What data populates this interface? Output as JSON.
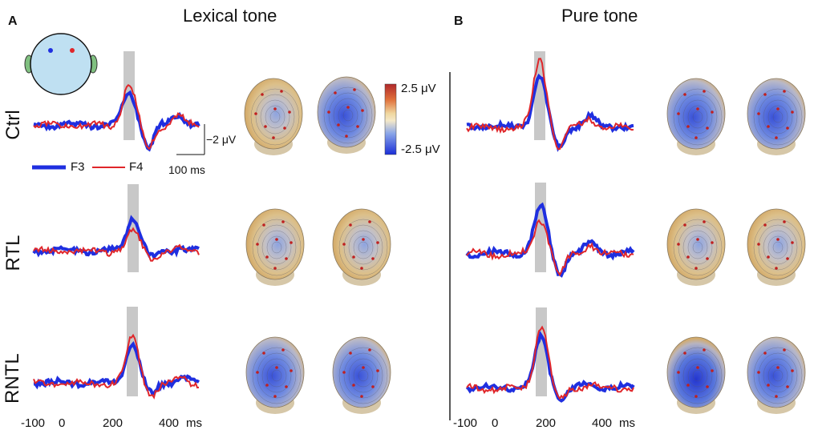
{
  "panels": {
    "a": {
      "label": "A",
      "title": "Lexical tone"
    },
    "b": {
      "label": "B",
      "title": "Pure tone"
    }
  },
  "rows": [
    "Ctrl",
    "RTL",
    "RNTL"
  ],
  "electrodes": {
    "left": "F3",
    "right": "F4"
  },
  "legend": {
    "f3": "F3",
    "f4": "F4"
  },
  "scale_bar": {
    "amplitude": "−2 μV",
    "time": "100 ms"
  },
  "colorbar": {
    "max": "2.5 μV",
    "min": "-2.5 μV",
    "colors": [
      "#c0282a",
      "#e8a040",
      "#f4e4b0",
      "#7a96e0",
      "#1a2ee0"
    ]
  },
  "x_axis": {
    "ticks": [
      "-100",
      "0",
      "200",
      "400"
    ],
    "unit": "ms"
  },
  "colors": {
    "f3": "#1f2fe0",
    "f4": "#e0262a",
    "window": "#c8c8c8"
  }
}
